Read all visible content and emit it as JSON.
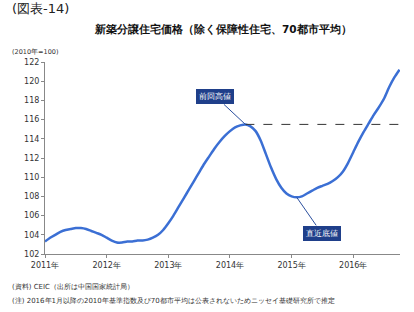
{
  "figure_label": "(図表-14)",
  "notes": [
    "(資料) CEIC（出所は中国国家統計局）",
    "(注) 2016年1月以降の2010年基準指数及び70都市平均は公表されないためニッセイ基礎研究所で推定"
  ],
  "chart_data": {
    "type": "line",
    "title": "新築分譲住宅価格（除く保障性住宅、70都市平均）",
    "y_label": "(2010年=100)",
    "categories": [
      "2011年",
      null,
      null,
      null,
      null,
      null,
      null,
      null,
      null,
      null,
      null,
      null,
      "2012年",
      null,
      null,
      null,
      null,
      null,
      null,
      null,
      null,
      null,
      null,
      null,
      "2013年",
      null,
      null,
      null,
      null,
      null,
      null,
      null,
      null,
      null,
      null,
      null,
      "2014年",
      null,
      null,
      null,
      null,
      null,
      null,
      null,
      null,
      null,
      null,
      null,
      "2015年",
      null,
      null,
      null,
      null,
      null,
      null,
      null,
      null,
      null,
      null,
      null,
      "2016年",
      null,
      null,
      null,
      null,
      null,
      null,
      null,
      null,
      null
    ],
    "values": [
      103.3,
      103.7,
      104.0,
      104.3,
      104.5,
      104.6,
      104.7,
      104.7,
      104.6,
      104.4,
      104.2,
      104.0,
      103.7,
      103.4,
      103.2,
      103.2,
      103.3,
      103.3,
      103.4,
      103.4,
      103.5,
      103.7,
      104.0,
      104.5,
      105.2,
      106.0,
      106.9,
      107.8,
      108.7,
      109.6,
      110.5,
      111.4,
      112.2,
      113.0,
      113.7,
      114.3,
      114.8,
      115.2,
      115.4,
      115.5,
      115.3,
      114.8,
      113.8,
      112.4,
      111.0,
      109.8,
      108.9,
      108.3,
      108.0,
      107.9,
      108.0,
      108.3,
      108.6,
      108.9,
      109.1,
      109.3,
      109.6,
      110.0,
      110.6,
      111.5,
      112.6,
      113.7,
      114.7,
      115.6,
      116.5,
      117.3,
      118.2,
      119.4,
      120.4,
      121.2
    ],
    "color": "#3b6fd4",
    "ylim": [
      102,
      122
    ],
    "yticks": [
      102,
      104,
      106,
      108,
      110,
      112,
      114,
      116,
      118,
      120,
      122
    ],
    "grid": false,
    "annotations": [
      {
        "text": "前回高値",
        "x": 39,
        "y": 115.5
      },
      {
        "text": "直近底値",
        "x": 49,
        "y": 107.9
      }
    ],
    "reference_line": {
      "y": 115.5,
      "x_from": 39,
      "line_style": "dashed"
    }
  }
}
